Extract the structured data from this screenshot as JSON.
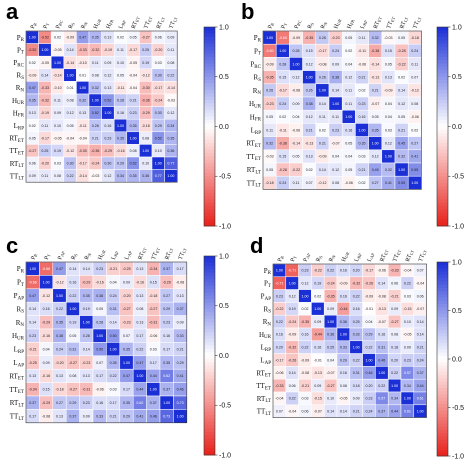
{
  "color_scale": {
    "min_color": "#e8201a",
    "mid_color": "#ffffff",
    "max_color": "#1b2fd6"
  },
  "chart_data": [
    {
      "type": "heatmap",
      "panel": "a",
      "row_labels": [
        "P_R",
        "P_T",
        "P_RC",
        "R_S",
        "R_N",
        "H_UR",
        "H_FR",
        "L_RP",
        "RT_ET",
        "TT_ET",
        "RT_LT",
        "TT_LT"
      ],
      "col_labels": [
        "P_R",
        "P_T",
        "P_RC",
        "R_S",
        "R_N",
        "H_UR",
        "H_FR",
        "L_RP",
        "RT_ET",
        "TT_ET",
        "RT_LT",
        "TT_LT"
      ],
      "vmin": -1,
      "vmax": 1,
      "colorbar_ticks": [
        1.0,
        0.5,
        0.0,
        -0.5,
        -1.0
      ],
      "values": [
        [
          1.0,
          -0.52,
          0.02,
          -0.09,
          0.47,
          0.35,
          0.13,
          0.02,
          0.05,
          -0.27,
          0.06,
          0.09
        ],
        [
          -0.52,
          1.0,
          -0.05,
          0.14,
          -0.33,
          -0.32,
          -0.19,
          0.11,
          -0.17,
          0.25,
          -0.2,
          0.11
        ],
        [
          0.02,
          -0.05,
          1.0,
          -0.14,
          -0.1,
          0.11,
          0.09,
          0.1,
          -0.05,
          0.19,
          0.03,
          0.08
        ],
        [
          -0.09,
          0.14,
          -0.14,
          1.0,
          0.01,
          0.08,
          0.12,
          0.05,
          -0.04,
          -0.12,
          0.3,
          0.22
        ],
        [
          0.47,
          -0.33,
          -0.1,
          0.01,
          1.0,
          0.32,
          0.13,
          -0.11,
          -0.04,
          -0.3,
          -0.17,
          -0.14
        ],
        [
          0.35,
          -0.32,
          0.11,
          0.08,
          0.32,
          1.0,
          0.52,
          0.28,
          0.21,
          -0.36,
          -0.24,
          -0.03
        ],
        [
          0.13,
          -0.19,
          0.09,
          0.12,
          0.13,
          0.52,
          1.0,
          0.16,
          0.23,
          -0.29,
          0.3,
          0.12
        ],
        [
          0.02,
          0.11,
          0.1,
          0.05,
          -0.11,
          0.28,
          0.16,
          1.0,
          0.35,
          -0.16,
          0.29,
          0.34
        ],
        [
          0.05,
          -0.17,
          -0.05,
          -0.04,
          -0.04,
          0.21,
          0.23,
          0.35,
          1.0,
          0.08,
          0.52,
          0.35
        ],
        [
          -0.27,
          0.25,
          0.19,
          -0.12,
          -0.3,
          -0.36,
          -0.29,
          -0.16,
          0.08,
          1.0,
          0.1,
          0.36
        ],
        [
          0.06,
          -0.2,
          0.03,
          0.3,
          -0.17,
          -0.24,
          0.3,
          0.29,
          0.52,
          0.1,
          1.0,
          0.77
        ],
        [
          0.09,
          0.11,
          0.08,
          0.22,
          -0.14,
          -0.03,
          0.12,
          0.34,
          0.35,
          0.36,
          0.77,
          1.0
        ]
      ]
    },
    {
      "type": "heatmap",
      "panel": "b",
      "row_labels": [
        "P_R",
        "P_T",
        "P_RC",
        "R_S",
        "R_N",
        "H_UR",
        "H_FR",
        "L_RP",
        "RT_ET",
        "TT_ET",
        "RT_LT",
        "TT_LT"
      ],
      "col_labels": [
        "P_R",
        "P_T",
        "P_RC",
        "R_S",
        "R_N",
        "H_UR",
        "H_FR",
        "L_RP",
        "RT_ET",
        "TT_ET",
        "RT_LT",
        "TT_LT"
      ],
      "vmin": -1,
      "vmax": 1,
      "colorbar_ticks": [
        1.0,
        0.5,
        0.0,
        -0.5,
        -1.0
      ],
      "values": [
        [
          1.0,
          -0.6,
          -0.09,
          -0.35,
          0.26,
          -0.23,
          0.05,
          0.11,
          0.32,
          -0.03,
          0.05,
          -0.18
        ],
        [
          -0.6,
          1.0,
          0.28,
          0.15,
          -0.17,
          0.24,
          0.02,
          -0.11,
          -0.38,
          0.15,
          -0.28,
          0.24
        ],
        [
          -0.09,
          0.28,
          1.0,
          0.12,
          -0.08,
          0.09,
          0.04,
          -0.06,
          -0.14,
          0.05,
          -0.22,
          0.11
        ],
        [
          -0.35,
          0.15,
          0.12,
          1.0,
          0.26,
          0.38,
          0.12,
          0.21,
          -0.13,
          0.13,
          0.02,
          0.07
        ],
        [
          0.26,
          -0.17,
          -0.08,
          0.26,
          1.0,
          0.14,
          0.11,
          0.02,
          0.21,
          -0.09,
          0.14,
          -0.12
        ],
        [
          -0.23,
          0.24,
          0.09,
          0.38,
          0.14,
          1.0,
          0.11,
          0.23,
          -0.07,
          0.04,
          0.12,
          0.08
        ],
        [
          0.05,
          0.02,
          0.04,
          0.12,
          0.11,
          0.11,
          1.0,
          0.16,
          0.05,
          0.04,
          0.05,
          -0.06
        ],
        [
          0.11,
          -0.11,
          -0.06,
          0.21,
          0.02,
          0.23,
          0.16,
          1.0,
          0.35,
          0.03,
          0.21,
          0.02
        ],
        [
          0.32,
          -0.38,
          -0.14,
          -0.13,
          0.21,
          -0.07,
          0.05,
          0.35,
          1.0,
          0.12,
          0.45,
          0.27
        ],
        [
          -0.03,
          0.15,
          0.05,
          0.13,
          -0.09,
          0.04,
          0.04,
          0.03,
          0.12,
          1.0,
          0.32,
          0.41
        ],
        [
          0.05,
          -0.28,
          -0.22,
          0.02,
          0.14,
          0.12,
          0.05,
          0.21,
          0.45,
          0.32,
          1.0,
          0.55
        ],
        [
          -0.18,
          0.24,
          0.11,
          0.07,
          -0.12,
          0.08,
          -0.06,
          0.02,
          0.27,
          0.41,
          0.55,
          1.0
        ]
      ]
    },
    {
      "type": "heatmap",
      "panel": "c",
      "row_labels": [
        "P_R",
        "P_T",
        "P_AP",
        "R_S",
        "R_N",
        "H_UR",
        "L_RP",
        "L_AP",
        "RT_ET",
        "TT_ET",
        "RT_LT",
        "TT_LT"
      ],
      "col_labels": [
        "P_R",
        "P_T",
        "P_AP",
        "R_S",
        "R_N",
        "H_UR",
        "L_RP",
        "L_AP",
        "RT_ET",
        "TT_ET",
        "RT_LT",
        "TT_LT"
      ],
      "vmin": -1,
      "vmax": 1,
      "colorbar_ticks": [
        1.0,
        0.5,
        0.0,
        -0.5,
        -1.0
      ],
      "values": [
        [
          1.0,
          -0.66,
          0.47,
          0.14,
          0.14,
          0.23,
          -0.21,
          -0.25,
          0.13,
          -0.34,
          0.37,
          0.17
        ],
        [
          -0.66,
          1.0,
          -0.12,
          0.16,
          -0.29,
          -0.16,
          0.04,
          0.09,
          -0.16,
          0.15,
          -0.29,
          -0.08
        ],
        [
          0.47,
          -0.12,
          1.0,
          0.22,
          0.35,
          0.38,
          0.24,
          -0.2,
          0.13,
          -0.18,
          0.27,
          0.13
        ],
        [
          0.14,
          0.16,
          0.22,
          1.0,
          0.19,
          0.05,
          0.31,
          -0.27,
          0.08,
          -0.27,
          0.29,
          0.37
        ],
        [
          0.14,
          -0.29,
          0.35,
          0.19,
          1.0,
          0.28,
          0.14,
          -0.23,
          0.13,
          -0.31,
          0.23,
          0.09
        ],
        [
          0.23,
          -0.16,
          0.38,
          0.05,
          0.28,
          1.0,
          0.5,
          0.07,
          0.17,
          -0.06,
          0.16,
          0.33
        ],
        [
          -0.21,
          0.04,
          0.24,
          0.31,
          0.14,
          0.5,
          1.0,
          0.35,
          0.22,
          0.03,
          0.17,
          0.21
        ],
        [
          -0.25,
          0.09,
          -0.2,
          -0.27,
          -0.23,
          0.07,
          0.35,
          1.0,
          0.47,
          0.17,
          0.35,
          0.29
        ],
        [
          0.13,
          -0.16,
          0.13,
          0.08,
          0.13,
          0.17,
          0.22,
          0.47,
          1.0,
          0.44,
          0.62,
          0.41
        ],
        [
          -0.34,
          0.15,
          -0.18,
          -0.27,
          -0.31,
          -0.06,
          0.03,
          0.17,
          0.44,
          1.0,
          0.37,
          0.46
        ],
        [
          0.37,
          -0.29,
          0.27,
          0.29,
          0.23,
          0.16,
          0.17,
          0.35,
          0.62,
          0.37,
          1.0,
          0.73
        ],
        [
          0.17,
          -0.08,
          0.13,
          0.37,
          0.09,
          0.33,
          0.21,
          0.29,
          0.41,
          0.46,
          0.73,
          1.0
        ]
      ]
    },
    {
      "type": "heatmap",
      "panel": "d",
      "row_labels": [
        "P_R",
        "P_T",
        "P_AP",
        "R_S",
        "R_N",
        "H_UR",
        "L_RP",
        "L_AP",
        "RT_ET",
        "TT_ET",
        "RT_LT",
        "TT_LT"
      ],
      "col_labels": [
        "P_R",
        "P_T",
        "P_AP",
        "R_S",
        "R_N",
        "H_UR",
        "L_RP",
        "L_AP",
        "RT_ET",
        "TT_ET",
        "RT_LT",
        "TT_LT"
      ],
      "vmin": -1,
      "vmax": 1,
      "colorbar_ticks": [
        1.0,
        0.5,
        0.0,
        -0.5,
        -1.0
      ],
      "values": [
        [
          1.0,
          -0.71,
          0.23,
          -0.22,
          0.22,
          0.16,
          0.2,
          -0.17,
          -0.06,
          -0.33,
          -0.04,
          0.07
        ],
        [
          -0.71,
          1.0,
          0.12,
          0.19,
          -0.24,
          -0.09,
          -0.32,
          -0.26,
          0.14,
          0.06,
          0.22,
          -0.04
        ],
        [
          0.23,
          0.12,
          1.0,
          0.02,
          -0.35,
          0.16,
          0.22,
          -0.09,
          -0.08,
          -0.21,
          0.03,
          0.06
        ],
        [
          -0.22,
          0.19,
          0.02,
          1.0,
          0.09,
          -0.44,
          0.16,
          -0.01,
          -0.13,
          0.09,
          -0.15,
          -0.07
        ],
        [
          0.22,
          -0.24,
          -0.35,
          0.09,
          1.0,
          0.36,
          0.25,
          0.04,
          -0.07,
          -0.27,
          0.1,
          0.14
        ],
        [
          0.16,
          -0.09,
          0.16,
          -0.44,
          0.36,
          1.0,
          0.33,
          0.29,
          0.16,
          0.08,
          -0.05,
          0.14
        ],
        [
          0.2,
          -0.32,
          0.22,
          0.16,
          0.25,
          0.33,
          1.0,
          0.22,
          0.31,
          0.18,
          0.09,
          0.21
        ],
        [
          -0.17,
          -0.26,
          -0.09,
          -0.01,
          0.04,
          0.29,
          0.22,
          1.0,
          0.46,
          0.2,
          0.23,
          0.24
        ],
        [
          -0.06,
          0.14,
          -0.08,
          -0.13,
          -0.07,
          0.16,
          0.31,
          0.46,
          1.0,
          0.22,
          0.57,
          0.37
        ],
        [
          -0.33,
          0.06,
          -0.21,
          0.09,
          -0.27,
          0.08,
          0.18,
          0.2,
          0.22,
          1.0,
          0.34,
          0.44
        ],
        [
          -0.04,
          0.22,
          0.03,
          -0.15,
          0.1,
          -0.05,
          0.09,
          0.23,
          0.57,
          0.34,
          1.0,
          0.61
        ],
        [
          0.07,
          -0.04,
          0.06,
          -0.07,
          0.14,
          0.14,
          0.21,
          0.24,
          0.37,
          0.44,
          0.61,
          1.0
        ]
      ]
    }
  ]
}
